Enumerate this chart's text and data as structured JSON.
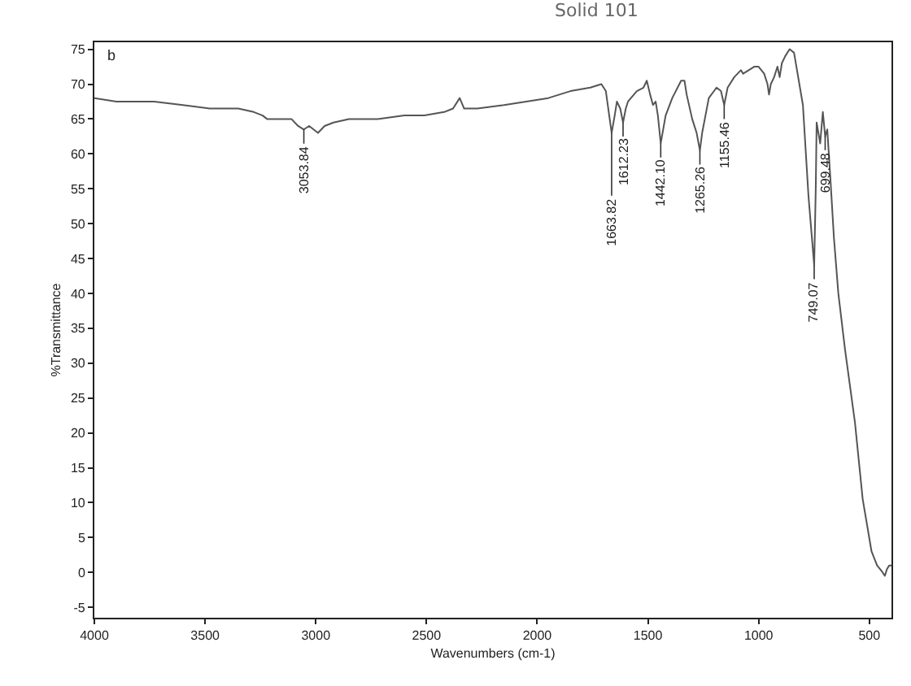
{
  "chart_data": {
    "type": "line",
    "title": "Solid 101",
    "xlabel": "Wavenumbers (cm-1)",
    "ylabel": "%Transmittance",
    "xlim": [
      4000,
      400
    ],
    "xticks": [
      4000,
      3500,
      3000,
      2500,
      2000,
      1500,
      1000,
      500
    ],
    "ylim": [
      -6.5,
      76
    ],
    "yticks": [
      -5,
      0,
      5,
      10,
      15,
      20,
      25,
      30,
      35,
      40,
      45,
      50,
      55,
      60,
      65,
      70,
      75
    ],
    "series": [
      {
        "color": "#555555",
        "x": [
          4000,
          3900,
          3730,
          3600,
          3480,
          3350,
          3280,
          3240,
          3220,
          3180,
          3110,
          3080,
          3053.84,
          3030,
          3010,
          2990,
          2960,
          2920,
          2850,
          2720,
          2600,
          2510,
          2420,
          2380,
          2350,
          2330,
          2300,
          2270,
          2150,
          2050,
          1950,
          1850,
          1760,
          1710,
          1690,
          1663.82,
          1650,
          1640,
          1625,
          1612.23,
          1600,
          1590,
          1550,
          1520,
          1505,
          1490,
          1477,
          1465,
          1455,
          1442.1,
          1420,
          1390,
          1350,
          1335,
          1325,
          1300,
          1280,
          1265.26,
          1255,
          1240,
          1225,
          1190,
          1170,
          1155.46,
          1140,
          1110,
          1080,
          1070,
          1045,
          1020,
          1000,
          975,
          960,
          953,
          945,
          930,
          915,
          905,
          895,
          880,
          860,
          840,
          800,
          775,
          749.07,
          742,
          738,
          730,
          722,
          710,
          699.48,
          690,
          675,
          660,
          640,
          610,
          565,
          530,
          490,
          465,
          440,
          430,
          420,
          410,
          400
        ],
        "values": [
          68,
          67.5,
          67.5,
          67,
          66.5,
          66.5,
          66,
          65.5,
          65,
          65,
          65,
          64,
          63.5,
          64,
          63.5,
          63,
          64,
          64.5,
          65,
          65,
          65.5,
          65.5,
          66,
          66.5,
          68,
          66.5,
          66.5,
          66.5,
          67,
          67.5,
          68,
          69,
          69.5,
          70,
          69,
          63,
          65.5,
          67.5,
          66.5,
          64.5,
          66.5,
          67.5,
          69,
          69.5,
          70.5,
          68.5,
          67,
          67.5,
          65.5,
          61.5,
          65.5,
          68,
          70.5,
          70.5,
          68.5,
          65,
          63,
          60.5,
          63,
          65.5,
          68,
          69.5,
          69,
          67,
          69.5,
          71,
          72,
          71.5,
          72,
          72.5,
          72.5,
          71.5,
          70,
          68.5,
          70,
          71,
          72.5,
          71,
          73,
          74,
          75,
          74.5,
          67,
          54,
          44,
          55,
          64.5,
          63,
          61.5,
          66,
          62.5,
          63.5,
          56,
          48,
          40,
          32,
          21.5,
          10.5,
          3,
          1,
          0,
          -0.5,
          0.5,
          1,
          1
        ]
      }
    ],
    "annotations": [
      "b",
      {
        "text": "3053.84",
        "x": 3053.84,
        "y": 63.5
      },
      {
        "text": "1663.82",
        "x": 1663.82,
        "y": 63
      },
      {
        "text": "1612.23",
        "x": 1612.23,
        "y": 64.5
      },
      {
        "text": "1442.10",
        "x": 1442.1,
        "y": 61.5
      },
      {
        "text": "1265.26",
        "x": 1265.26,
        "y": 60.5
      },
      {
        "text": "1155.46",
        "x": 1155.46,
        "y": 67
      },
      {
        "text": "749.07",
        "x": 749.07,
        "y": 44
      },
      {
        "text": "699.48",
        "x": 699.48,
        "y": 62.5
      }
    ]
  }
}
